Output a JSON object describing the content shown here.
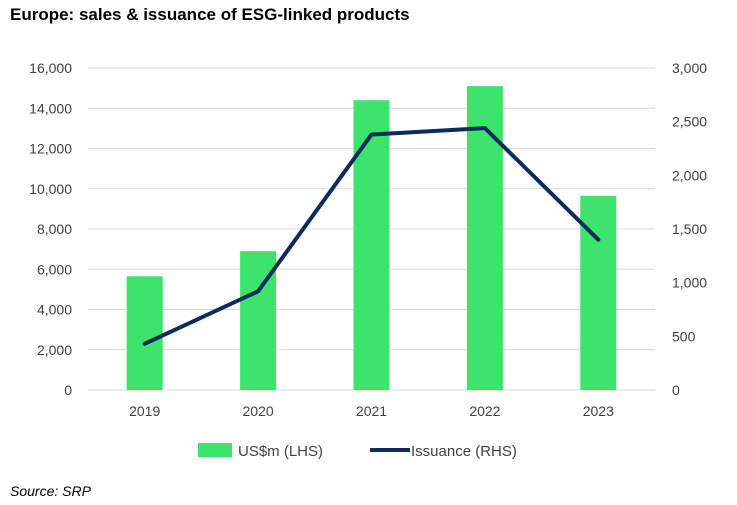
{
  "title": "Europe: sales & issuance of ESG-linked products",
  "source": "Source: SRP",
  "colors": {
    "bars": "#3de46b",
    "line": "#0d2b5e",
    "grid": "#d9d9d9",
    "axis_text": "#404040"
  },
  "chart_data": {
    "type": "bar",
    "categories": [
      "2019",
      "2020",
      "2021",
      "2022",
      "2023"
    ],
    "series": [
      {
        "name": "US$m (LHS)",
        "type": "bar",
        "axis": "left",
        "values": [
          5650,
          6900,
          14400,
          15100,
          9650
        ]
      },
      {
        "name": "Issuance (RHS)",
        "type": "line",
        "axis": "right",
        "values": [
          430,
          920,
          2380,
          2440,
          1400
        ]
      }
    ],
    "y_left": {
      "ticks": [
        "16,000",
        "14,000",
        "12,000",
        "10,000",
        "8,000",
        "6,000",
        "4,000",
        "2,000",
        "0"
      ],
      "ylim": [
        0,
        16000
      ]
    },
    "y_right": {
      "ticks": [
        "3,000",
        "2,500",
        "2,000",
        "1,500",
        "1,000",
        "500",
        "0"
      ],
      "ylim": [
        0,
        3000
      ]
    },
    "grid": true,
    "legend": "bottom"
  }
}
